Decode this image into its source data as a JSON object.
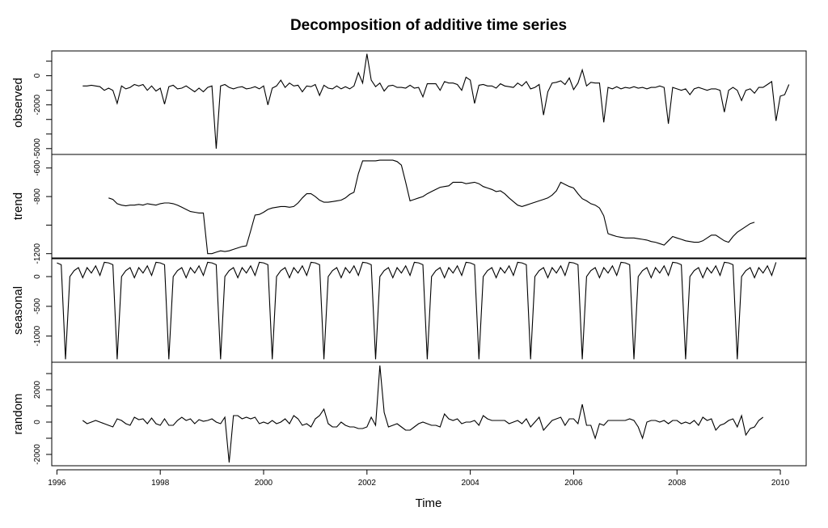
{
  "chart_data": {
    "type": "line",
    "title": "Decomposition of additive time series",
    "xlabel": "Time",
    "xlim": [
      1995.9,
      2010.5
    ],
    "xticks": [
      1996,
      1998,
      2000,
      2002,
      2004,
      2006,
      2008,
      2010
    ],
    "x_start": 1996.5,
    "frequency": 12,
    "panels": [
      {
        "name": "observed",
        "ylim": [
          -5400,
          1700
        ],
        "yticks": [
          -5000,
          -4000,
          -3000,
          -2000,
          -1000,
          0,
          1000
        ],
        "ytick_labels": [
          "-5000",
          "",
          "",
          "-2000",
          "",
          "0",
          ""
        ],
        "x_start": 1996.5,
        "values": [
          -700,
          -700,
          -650,
          -700,
          -750,
          -1000,
          -850,
          -1000,
          -1900,
          -700,
          -900,
          -800,
          -600,
          -700,
          -600,
          -1000,
          -700,
          -1050,
          -850,
          -1950,
          -750,
          -650,
          -900,
          -850,
          -700,
          -900,
          -1100,
          -850,
          -1100,
          -800,
          -700,
          -5000,
          -700,
          -600,
          -800,
          -900,
          -800,
          -750,
          -900,
          -850,
          -750,
          -900,
          -700,
          -2000,
          -850,
          -700,
          -300,
          -800,
          -500,
          -700,
          -650,
          -1100,
          -700,
          -750,
          -600,
          -1350,
          -650,
          -850,
          -900,
          -700,
          -900,
          -750,
          -900,
          -700,
          200,
          -500,
          1500,
          -300,
          -750,
          -500,
          -1050,
          -700,
          -650,
          -800,
          -800,
          -850,
          -650,
          -850,
          -800,
          -1450,
          -550,
          -550,
          -550,
          -1000,
          -400,
          -500,
          -500,
          -600,
          -1000,
          -100,
          -300,
          -1900,
          -650,
          -600,
          -700,
          -700,
          -850,
          -550,
          -700,
          -750,
          -800,
          -500,
          -700,
          -400,
          -900,
          -800,
          -600,
          -2700,
          -1100,
          -500,
          -450,
          -350,
          -600,
          -150,
          -950,
          -500,
          400,
          -700,
          -450,
          -500,
          -500,
          -3200,
          -800,
          -900,
          -750,
          -900,
          -800,
          -850,
          -750,
          -850,
          -800,
          -900,
          -800,
          -800,
          -700,
          -800,
          -3300,
          -800,
          -900,
          -1000,
          -900,
          -1300,
          -900,
          -800,
          -900,
          -1000,
          -900,
          -900,
          -1000,
          -2500,
          -1000,
          -800,
          -1000,
          -1700,
          -1000,
          -900,
          -1200,
          -800,
          -800,
          -600,
          -400,
          -3100,
          -1400,
          -1300,
          -600
        ]
      },
      {
        "name": "trend",
        "ylim": [
          -1230,
          -505
        ],
        "yticks": [
          -1200,
          -1000,
          -800,
          -600
        ],
        "ytick_labels": [
          "-1200",
          "",
          "-800",
          "-600"
        ],
        "x_start": 1997.0,
        "values": [
          -810,
          -820,
          -850,
          -860,
          -865,
          -860,
          -860,
          -855,
          -860,
          -850,
          -855,
          -860,
          -850,
          -845,
          -845,
          -850,
          -860,
          -875,
          -890,
          -905,
          -910,
          -915,
          -915,
          -1200,
          -1200,
          -1190,
          -1180,
          -1185,
          -1180,
          -1170,
          -1160,
          -1150,
          -1145,
          -1040,
          -930,
          -925,
          -910,
          -890,
          -880,
          -875,
          -870,
          -870,
          -875,
          -870,
          -845,
          -810,
          -780,
          -780,
          -800,
          -825,
          -840,
          -840,
          -835,
          -830,
          -825,
          -810,
          -785,
          -770,
          -640,
          -550,
          -550,
          -550,
          -550,
          -545,
          -545,
          -545,
          -545,
          -555,
          -580,
          -700,
          -830,
          -820,
          -810,
          -800,
          -780,
          -765,
          -750,
          -735,
          -730,
          -725,
          -700,
          -700,
          -700,
          -710,
          -705,
          -700,
          -710,
          -730,
          -740,
          -750,
          -765,
          -760,
          -780,
          -810,
          -835,
          -860,
          -870,
          -860,
          -850,
          -840,
          -830,
          -820,
          -810,
          -790,
          -760,
          -700,
          -715,
          -730,
          -740,
          -780,
          -815,
          -830,
          -850,
          -860,
          -880,
          -935,
          -1060,
          -1070,
          -1080,
          -1085,
          -1090,
          -1090,
          -1090,
          -1095,
          -1100,
          -1105,
          -1115,
          -1120,
          -1130,
          -1140,
          -1110,
          -1080,
          -1090,
          -1100,
          -1110,
          -1115,
          -1120,
          -1120,
          -1110,
          -1090,
          -1070,
          -1070,
          -1090,
          -1110,
          -1120,
          -1080,
          -1050,
          -1030,
          -1010,
          -990,
          -980
        ]
      },
      {
        "name": "seasonal",
        "ylim": [
          -1440,
          300
        ],
        "yticks": [
          -1000,
          -500,
          0
        ],
        "ytick_labels": [
          "-1000",
          "-500",
          "0"
        ],
        "x_start": 1996.0,
        "pattern": [
          230,
          200,
          -1390,
          0,
          100,
          150,
          -20,
          150,
          60,
          180,
          20,
          240
        ],
        "periods": 14
      },
      {
        "name": "random",
        "ylim": [
          -2700,
          3700
        ],
        "yticks": [
          -2000,
          -1000,
          0,
          1000,
          2000,
          3000
        ],
        "ytick_labels": [
          "-2000",
          "",
          "0",
          "",
          "2000",
          ""
        ],
        "x_start": 1996.5,
        "values": [
          100,
          -100,
          0,
          100,
          0,
          -100,
          -200,
          -300,
          200,
          100,
          -100,
          -200,
          300,
          150,
          200,
          -100,
          250,
          -100,
          -200,
          200,
          -200,
          -200,
          100,
          300,
          100,
          200,
          -100,
          150,
          50,
          100,
          200,
          0,
          -100,
          300,
          -2500,
          400,
          400,
          200,
          300,
          200,
          300,
          -100,
          0,
          -100,
          100,
          -100,
          0,
          200,
          -100,
          400,
          200,
          -200,
          -100,
          -300,
          200,
          400,
          800,
          -100,
          -300,
          -300,
          0,
          -200,
          -300,
          -300,
          -400,
          -400,
          -300,
          300,
          -200,
          3500,
          600,
          -300,
          -200,
          -100,
          -300,
          -500,
          -500,
          -300,
          -100,
          0,
          -100,
          -200,
          -200,
          -300,
          500,
          200,
          100,
          200,
          -100,
          0,
          0,
          100,
          -200,
          400,
          200,
          100,
          100,
          100,
          100,
          -100,
          0,
          100,
          -100,
          200,
          -300,
          0,
          300,
          -500,
          -200,
          100,
          200,
          300,
          -200,
          200,
          200,
          -100,
          1100,
          -200,
          -200,
          -1000,
          -100,
          -200,
          100,
          100,
          100,
          100,
          100,
          200,
          100,
          -300,
          -1000,
          0,
          100,
          100,
          0,
          100,
          -100,
          100,
          100,
          -100,
          0,
          -100,
          100,
          -200,
          300,
          100,
          200,
          -500,
          -200,
          -100,
          100,
          200,
          -300,
          400,
          -800,
          -400,
          -300,
          100,
          300
        ]
      }
    ]
  }
}
